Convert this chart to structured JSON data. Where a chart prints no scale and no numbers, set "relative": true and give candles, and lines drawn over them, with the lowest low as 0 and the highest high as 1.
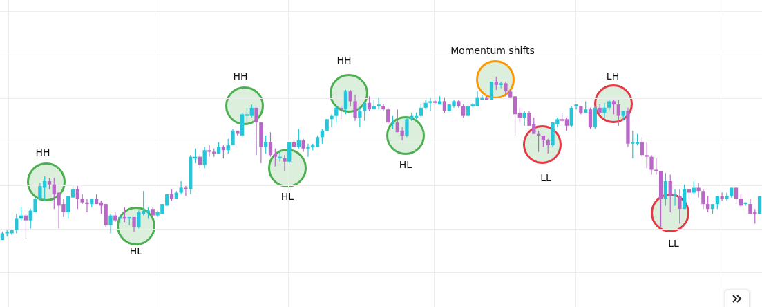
{
  "chart_data": {
    "type": "candlestick",
    "relative": true,
    "grid": true,
    "legend": false,
    "colors": [
      "#26c6da",
      "#26c6da",
      "#26c6da",
      "#26c6da",
      "#26c6da",
      "#ba68c8",
      "#26c6da",
      "#26c6da",
      "#26c6da",
      "#26c6da",
      "#ba68c8",
      "#ba68c8",
      "#ba68c8",
      "#ba68c8",
      "#26c6da",
      "#26c6da",
      "#ba68c8",
      "#ba68c8",
      "#ba68c8",
      "#26c6da",
      "#ba68c8",
      "#ba68c8",
      "#ba68c8",
      "#26c6da",
      "#ba68c8",
      "#26c6da",
      "#ba68c8",
      "#26c6da",
      "#ba68c8",
      "#26c6da",
      "#26c6da",
      "#26c6da",
      "#ba68c8",
      "#26c6da",
      "#26c6da",
      "#26c6da",
      "#ba68c8",
      "#26c6da",
      "#26c6da",
      "#ba68c8",
      "#26c6da",
      "#26c6da",
      "#ba68c8",
      "#26c6da",
      "#ba68c8",
      "#ba68c8",
      "#26c6da",
      "#ba68c8",
      "#26c6da",
      "#26c6da",
      "#ba68c8",
      "#26c6da",
      "#26c6da",
      "#26c6da",
      "#ba68c8",
      "#ba68c8",
      "#26c6da",
      "#ba68c8",
      "#ba68c8",
      "#26c6da",
      "#ba68c8",
      "#26c6da",
      "#ba68c8",
      "#26c6da",
      "#ba68c8",
      "#26c6da",
      "#26c6da",
      "#26c6da",
      "#26c6da",
      "#26c6da",
      "#26c6da",
      "#26c6da",
      "#ba68c8",
      "#26c6da",
      "#ba68c8",
      "#ba68c8",
      "#26c6da",
      "#26c6da",
      "#ba68c8",
      "#26c6da",
      "#26c6da",
      "#ba68c8",
      "#ba68c8",
      "#26c6da",
      "#ba68c8",
      "#ba68c8",
      "#26c6da",
      "#26c6da",
      "#26c6da",
      "#26c6da",
      "#26c6da",
      "#26c6da",
      "#ba68c8",
      "#26c6da",
      "#ba68c8",
      "#26c6da",
      "#26c6da",
      "#ba68c8",
      "#ba68c8",
      "#26c6da",
      "#26c6da",
      "#26c6da",
      "#26c6da",
      "#ba68c8",
      "#26c6da",
      "#ba68c8",
      "#26c6da",
      "#ba68c8",
      "#ba68c8",
      "#ba68c8",
      "#ba68c8",
      "#26c6da",
      "#ba68c8",
      "#ba68c8",
      "#ba68c8",
      "#ba68c8",
      "#ba68c8",
      "#26c6da",
      "#26c6da",
      "#ba68c8",
      "#ba68c8",
      "#26c6da",
      "#26c6da",
      "#ba68c8",
      "#26c6da",
      "#ba68c8",
      "#26c6da",
      "#ba68c8",
      "#26c6da",
      "#26c6da",
      "#ba68c8",
      "#ba68c8",
      "#26c6da",
      "#ba68c8",
      "#26c6da",
      "#26c6da",
      "#ba68c8",
      "#ba68c8",
      "#ba68c8",
      "#ba68c8",
      "#ba68c8",
      "#26c6da",
      "#ba68c8",
      "#26c6da",
      "#ba68c8",
      "#26c6da",
      "#ba68c8",
      "#26c6da",
      "#ba68c8",
      "#ba68c8",
      "#ba68c8",
      "#26c6da",
      "#26c6da",
      "#ba68c8",
      "#26c6da",
      "#26c6da",
      "#ba68c8",
      "#ba68c8",
      "#26c6da",
      "#ba68c8",
      "#ba68c8",
      "#26c6da"
    ],
    "annotations": [
      "HH",
      "HL",
      "HH",
      "HL",
      "HH",
      "HL",
      "Momentum shifts",
      "LL",
      "LH",
      "LL"
    ],
    "categories": [
      null,
      null,
      null,
      null,
      null,
      null,
      null,
      null,
      null,
      null,
      null,
      null,
      null,
      null,
      null,
      null,
      null,
      null,
      null,
      null,
      null,
      null,
      null,
      null,
      null,
      null,
      null,
      null,
      null,
      null,
      null,
      null,
      null,
      null,
      null,
      null,
      null,
      null,
      null,
      null,
      null,
      null,
      null,
      null,
      null,
      null,
      null,
      null,
      null,
      null,
      null,
      null,
      null,
      null,
      null,
      null,
      null,
      null,
      null,
      null,
      null,
      null,
      null,
      null,
      null,
      null,
      null,
      null,
      null,
      null,
      null,
      null,
      null,
      null,
      null,
      null,
      null,
      null,
      null,
      null,
      null,
      null,
      null,
      null,
      null,
      null,
      null,
      null,
      null,
      null,
      null,
      null,
      null,
      null,
      null,
      null,
      null,
      null,
      null,
      null,
      null,
      null,
      null,
      null,
      null,
      null,
      null,
      null,
      null,
      null,
      null,
      null,
      null,
      null,
      null,
      null,
      null,
      null,
      null,
      null,
      null,
      null,
      null,
      null,
      null,
      null,
      null,
      null,
      null,
      null,
      null,
      null,
      null,
      null,
      null,
      null,
      null,
      null,
      null,
      null,
      null,
      null,
      null,
      null,
      null,
      null,
      null,
      null,
      null,
      null,
      null,
      null,
      null,
      null,
      null,
      null,
      null,
      null,
      null,
      null,
      null,
      null
    ],
    "ohlc": [
      [
        0,
        0.05,
        0,
        0.04
      ],
      [
        0.04,
        0.06,
        0.02,
        0.045
      ],
      [
        0.04,
        0.06,
        0.03,
        0.06
      ],
      [
        0.06,
        0.16,
        0.04,
        0.13
      ],
      [
        0.13,
        0.2,
        0.12,
        0.15
      ],
      [
        0.15,
        0.16,
        0.01,
        0.12
      ],
      [
        0.12,
        0.19,
        0.07,
        0.18
      ],
      [
        0.17,
        0.26,
        0.17,
        0.25
      ],
      [
        0.25,
        0.35,
        0.24,
        0.33
      ],
      [
        0.32,
        0.39,
        0.24,
        0.36
      ],
      [
        0.36,
        0.38,
        0.31,
        0.34
      ],
      [
        0.34,
        0.38,
        0.19,
        0.28
      ],
      [
        0.29,
        0.29,
        0.07,
        0.21
      ],
      [
        0.22,
        0.25,
        0.14,
        0.17
      ],
      [
        0.17,
        0.27,
        0.13,
        0.27
      ],
      [
        0.26,
        0.34,
        0.26,
        0.31
      ],
      [
        0.31,
        0.33,
        0.19,
        0.25
      ],
      [
        0.25,
        0.28,
        0.22,
        0.23
      ],
      [
        0.23,
        0.25,
        0.17,
        0.22
      ],
      [
        0.22,
        0.25,
        0.2,
        0.25
      ],
      [
        0.25,
        0.28,
        0.22,
        0.22
      ],
      [
        0.23,
        0.24,
        0.16,
        0.21
      ],
      [
        0.22,
        0.22,
        0.08,
        0.09
      ],
      [
        0.09,
        0.16,
        0.04,
        0.15
      ],
      [
        0.15,
        0.17,
        0.11,
        0.12
      ],
      [
        0.13,
        0.15,
        0.1,
        0.14
      ],
      [
        0.14,
        0.2,
        0.11,
        0.13
      ],
      [
        0.13,
        0.14,
        0.09,
        0.14
      ],
      [
        0.14,
        0.14,
        0.05,
        0.08
      ],
      [
        0.08,
        0.18,
        0.07,
        0.17
      ],
      [
        0.16,
        0.3,
        0.15,
        0.18
      ],
      [
        0.17,
        0.2,
        0.13,
        0.18
      ],
      [
        0.19,
        0.2,
        0.13,
        0.15
      ],
      [
        0.15,
        0.18,
        0.14,
        0.17
      ],
      [
        0.16,
        0.22,
        0.16,
        0.22
      ],
      [
        0.21,
        0.28,
        0.21,
        0.28
      ],
      [
        0.28,
        0.31,
        0.24,
        0.25
      ],
      [
        0.25,
        0.3,
        0.25,
        0.29
      ],
      [
        0.29,
        0.36,
        0.28,
        0.32
      ],
      [
        0.32,
        0.33,
        0.27,
        0.31
      ],
      [
        0.31,
        0.52,
        0.28,
        0.51
      ],
      [
        0.5,
        0.56,
        0.47,
        0.51
      ],
      [
        0.51,
        0.53,
        0.44,
        0.46
      ],
      [
        0.46,
        0.57,
        0.44,
        0.55
      ],
      [
        0.55,
        0.58,
        0.51,
        0.54
      ],
      [
        0.54,
        0.56,
        0.51,
        0.53
      ],
      [
        0.53,
        0.6,
        0.53,
        0.57
      ],
      [
        0.57,
        0.58,
        0.5,
        0.55
      ],
      [
        0.55,
        0.62,
        0.53,
        0.58
      ],
      [
        0.58,
        0.68,
        0.58,
        0.67
      ],
      [
        0.67,
        0.67,
        0.64,
        0.65
      ],
      [
        0.64,
        0.78,
        0.63,
        0.77
      ],
      [
        0.76,
        0.81,
        0.71,
        0.77
      ],
      [
        0.76,
        0.83,
        0.75,
        0.81
      ],
      [
        0.81,
        0.81,
        0.52,
        0.72
      ],
      [
        0.72,
        0.72,
        0.47,
        0.57
      ],
      [
        0.57,
        0.64,
        0.53,
        0.6
      ],
      [
        0.6,
        0.66,
        0.51,
        0.52
      ],
      [
        0.53,
        0.56,
        0.45,
        0.51
      ],
      [
        0.5,
        0.55,
        0.48,
        0.51
      ],
      [
        0.5,
        0.52,
        0.42,
        0.48
      ],
      [
        0.48,
        0.6,
        0.47,
        0.6
      ],
      [
        0.6,
        0.61,
        0.56,
        0.57
      ],
      [
        0.57,
        0.68,
        0.56,
        0.61
      ],
      [
        0.61,
        0.62,
        0.54,
        0.56
      ],
      [
        0.56,
        0.59,
        0.51,
        0.57
      ],
      [
        0.57,
        0.59,
        0.55,
        0.58
      ],
      [
        0.57,
        0.64,
        0.57,
        0.63
      ],
      [
        0.63,
        0.68,
        0.59,
        0.67
      ],
      [
        0.67,
        0.74,
        0.67,
        0.74
      ],
      [
        0.74,
        0.77,
        0.69,
        0.76
      ],
      [
        0.76,
        0.82,
        0.72,
        0.81
      ],
      [
        0.81,
        0.82,
        0.74,
        0.8
      ],
      [
        0.8,
        0.92,
        0.77,
        0.91
      ],
      [
        0.91,
        0.92,
        0.82,
        0.85
      ],
      [
        0.85,
        0.89,
        0.73,
        0.75
      ],
      [
        0.75,
        0.81,
        0.69,
        0.79
      ],
      [
        0.79,
        0.85,
        0.73,
        0.84
      ],
      [
        0.84,
        0.88,
        0.79,
        0.8
      ],
      [
        0.8,
        0.86,
        0.8,
        0.82
      ],
      [
        0.82,
        0.87,
        0.8,
        0.83
      ],
      [
        0.82,
        0.83,
        0.79,
        0.8
      ],
      [
        0.8,
        0.81,
        0.71,
        0.72
      ],
      [
        0.71,
        0.76,
        0.68,
        0.72
      ],
      [
        0.72,
        0.8,
        0.66,
        0.66
      ],
      [
        0.67,
        0.69,
        0.61,
        0.64
      ],
      [
        0.64,
        0.75,
        0.63,
        0.74
      ],
      [
        0.74,
        0.78,
        0.73,
        0.76
      ],
      [
        0.75,
        0.78,
        0.74,
        0.76
      ],
      [
        0.76,
        0.83,
        0.75,
        0.81
      ],
      [
        0.81,
        0.86,
        0.8,
        0.84
      ],
      [
        0.84,
        0.87,
        0.79,
        0.85
      ],
      [
        0.85,
        0.86,
        0.83,
        0.84
      ],
      [
        0.83,
        0.88,
        0.83,
        0.85
      ],
      [
        0.85,
        0.87,
        0.78,
        0.79
      ],
      [
        0.79,
        0.83,
        0.79,
        0.83
      ],
      [
        0.82,
        0.86,
        0.81,
        0.85
      ],
      [
        0.85,
        0.86,
        0.81,
        0.82
      ],
      [
        0.82,
        0.83,
        0.75,
        0.76
      ],
      [
        0.76,
        0.83,
        0.76,
        0.82
      ],
      [
        0.82,
        0.84,
        0.81,
        0.83
      ],
      [
        0.82,
        0.91,
        0.82,
        0.87
      ],
      [
        0.86,
        0.89,
        0.86,
        0.87
      ],
      [
        0.87,
        0.88,
        0.86,
        0.86
      ],
      [
        0.86,
        0.97,
        0.86,
        0.97
      ],
      [
        0.97,
        1,
        0.92,
        0.95
      ],
      [
        0.95,
        0.97,
        0.93,
        0.96
      ],
      [
        0.96,
        0.97,
        0.88,
        0.91
      ],
      [
        0.91,
        0.92,
        0.87,
        0.87
      ],
      [
        0.88,
        0.88,
        0.64,
        0.77
      ],
      [
        0.78,
        0.81,
        0.72,
        0.75
      ],
      [
        0.75,
        0.79,
        0.7,
        0.78
      ],
      [
        0.78,
        0.79,
        0.7,
        0.7
      ],
      [
        0.71,
        0.75,
        0.65,
        0.65
      ],
      [
        0.65,
        0.67,
        0.54,
        0.64
      ],
      [
        0.64,
        0.64,
        0.57,
        0.61
      ],
      [
        0.61,
        0.62,
        0.53,
        0.58
      ],
      [
        0.58,
        0.72,
        0.57,
        0.72
      ],
      [
        0.71,
        0.75,
        0.69,
        0.74
      ],
      [
        0.74,
        0.78,
        0.72,
        0.73
      ],
      [
        0.74,
        0.75,
        0.67,
        0.7
      ],
      [
        0.7,
        0.82,
        0.69,
        0.81
      ],
      [
        0.82,
        0.83,
        0.8,
        0.83
      ],
      [
        0.82,
        0.82,
        0.77,
        0.78
      ],
      [
        0.78,
        0.85,
        0.78,
        0.8
      ],
      [
        0.8,
        0.81,
        0.68,
        0.69
      ],
      [
        0.69,
        0.82,
        0.68,
        0.81
      ],
      [
        0.81,
        0.83,
        0.77,
        0.78
      ],
      [
        0.78,
        0.84,
        0.75,
        0.81
      ],
      [
        0.81,
        0.86,
        0.79,
        0.85
      ],
      [
        0.85,
        0.86,
        0.77,
        0.83
      ],
      [
        0.83,
        0.86,
        0.7,
        0.76
      ],
      [
        0.76,
        0.79,
        0.73,
        0.79
      ],
      [
        0.79,
        0.81,
        0.57,
        0.59
      ],
      [
        0.59,
        0.67,
        0.5,
        0.6
      ],
      [
        0.59,
        0.65,
        0.58,
        0.6
      ],
      [
        0.6,
        0.63,
        0.51,
        0.52
      ],
      [
        0.52,
        0.6,
        0.44,
        0.51
      ],
      [
        0.51,
        0.52,
        0.4,
        0.43
      ],
      [
        0.43,
        0.5,
        0.4,
        0.42
      ],
      [
        0.42,
        0.42,
        0.08,
        0.25
      ],
      [
        0.25,
        0.41,
        0.21,
        0.36
      ],
      [
        0.36,
        0.4,
        0.17,
        0.27
      ],
      [
        0.27,
        0.31,
        0.21,
        0.28
      ],
      [
        0.27,
        0.31,
        0.1,
        0.19
      ],
      [
        0.19,
        0.34,
        0.19,
        0.31
      ],
      [
        0.31,
        0.31,
        0.25,
        0.29
      ],
      [
        0.29,
        0.36,
        0.28,
        0.32
      ],
      [
        0.32,
        0.35,
        0.26,
        0.3
      ],
      [
        0.3,
        0.31,
        0.19,
        0.22
      ],
      [
        0.22,
        0.27,
        0.17,
        0.19
      ],
      [
        0.19,
        0.22,
        0.16,
        0.22
      ],
      [
        0.22,
        0.27,
        0.19,
        0.27
      ],
      [
        0.27,
        0.29,
        0.24,
        0.25
      ],
      [
        0.25,
        0.29,
        0.24,
        0.27
      ],
      [
        0.27,
        0.32,
        0.26,
        0.32
      ],
      [
        0.32,
        0.32,
        0.22,
        0.25
      ],
      [
        0.25,
        0.28,
        0.2,
        0.21
      ],
      [
        0.22,
        0.23,
        0.21,
        0.23
      ],
      [
        0.22,
        0.25,
        0.16,
        0.16
      ],
      [
        0.17,
        0.19,
        0.1,
        0.16
      ],
      [
        0.16,
        0.27,
        0.16,
        0.27
      ]
    ]
  }
}
